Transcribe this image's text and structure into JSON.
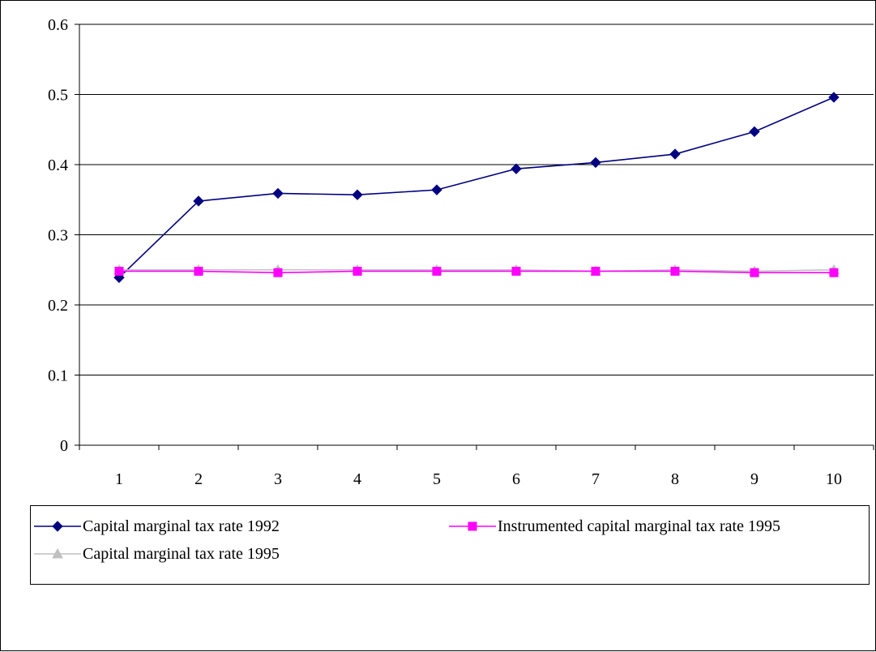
{
  "chart_data": {
    "type": "line",
    "title": "",
    "xlabel": "",
    "ylabel": "",
    "x": [
      1,
      2,
      3,
      4,
      5,
      6,
      7,
      8,
      9,
      10
    ],
    "x_tick_labels": [
      "1",
      "2",
      "3",
      "4",
      "5",
      "6",
      "7",
      "8",
      "9",
      "10"
    ],
    "y_ticks": [
      0,
      0.1,
      0.2,
      0.3,
      0.4,
      0.5,
      0.6
    ],
    "y_tick_labels": [
      "0",
      "0.1",
      "0.2",
      "0.3",
      "0.4",
      "0.5",
      "0.6"
    ],
    "ylim": [
      0,
      0.6
    ],
    "grid": "horizontal",
    "legend_position": "bottom",
    "series": [
      {
        "name": "Capital marginal tax rate 1992",
        "color": "#000080",
        "marker": "diamond",
        "values": [
          0.239,
          0.348,
          0.359,
          0.357,
          0.364,
          0.394,
          0.403,
          0.415,
          0.447,
          0.496
        ]
      },
      {
        "name": "Instrumented capital marginal tax rate 1995",
        "color": "#ff00ff",
        "marker": "square",
        "values": [
          0.248,
          0.248,
          0.246,
          0.248,
          0.248,
          0.248,
          0.248,
          0.248,
          0.246,
          0.246
        ]
      },
      {
        "name": "Capital marginal tax rate 1995",
        "color": "#c0c0c0",
        "marker": "triangle",
        "values": [
          0.25,
          0.25,
          0.25,
          0.25,
          0.25,
          0.25,
          0.248,
          0.25,
          0.248,
          0.25
        ]
      }
    ]
  }
}
